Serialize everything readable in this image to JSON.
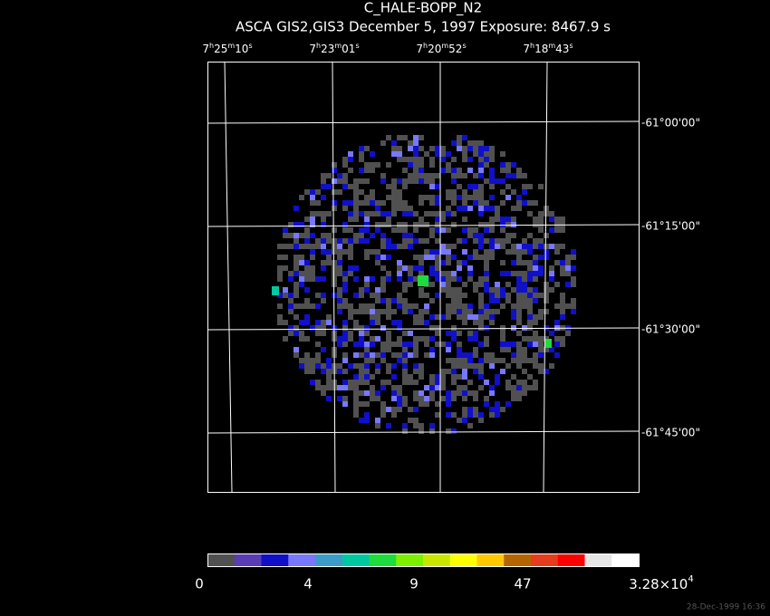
{
  "header": {
    "title": "C_HALE-BOPP_N2",
    "subtitle": "ASCA GIS2,GIS3 December 5, 1997 Exposure: 8467.9 s"
  },
  "ra_labels": [
    [
      "7",
      "h",
      "25",
      "m",
      "10",
      "s"
    ],
    [
      "7",
      "h",
      "23",
      "m",
      "01",
      "s"
    ],
    [
      "7",
      "h",
      "20",
      "m",
      "52",
      "s"
    ],
    [
      "7",
      "h",
      "18",
      "m",
      "43",
      "s"
    ]
  ],
  "dec_labels": [
    "-61°00'00\"",
    "-61°15'00\"",
    "-61°30'00\"",
    "-61°45'00\""
  ],
  "colorbar": {
    "colors": [
      "#505050",
      "#5a3cb4",
      "#1010c8",
      "#7878ff",
      "#3c9bc8",
      "#00c8a0",
      "#1edc3c",
      "#7cf000",
      "#c8e600",
      "#ffff00",
      "#ffc800",
      "#b46400",
      "#e63c1e",
      "#ff0000",
      "#e6e6e6",
      "#ffffff"
    ],
    "labels": [
      "0",
      "4",
      "9",
      "47"
    ],
    "max_label": {
      "mantissa": "3.28×10",
      "exponent": "4"
    }
  },
  "timestamp": "28-Dec-1999 16:36"
}
